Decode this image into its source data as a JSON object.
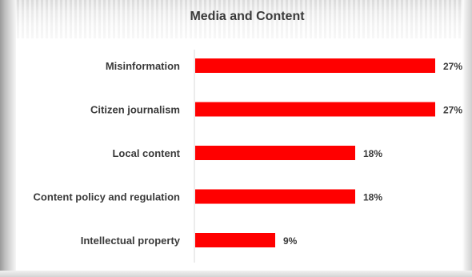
{
  "chart_data": {
    "type": "bar",
    "orientation": "horizontal",
    "title": "Media and Content",
    "categories": [
      "Misinformation",
      "Citizen journalism",
      "Local content",
      "Content policy and regulation",
      "Intellectual property"
    ],
    "values": [
      27,
      27,
      18,
      18,
      9
    ],
    "value_labels": [
      "27%",
      "27%",
      "18%",
      "18%",
      "9%"
    ],
    "unit": "%",
    "xlim": [
      0,
      27
    ],
    "grid": false,
    "legend": "none",
    "bar_color": "#ff0000"
  }
}
